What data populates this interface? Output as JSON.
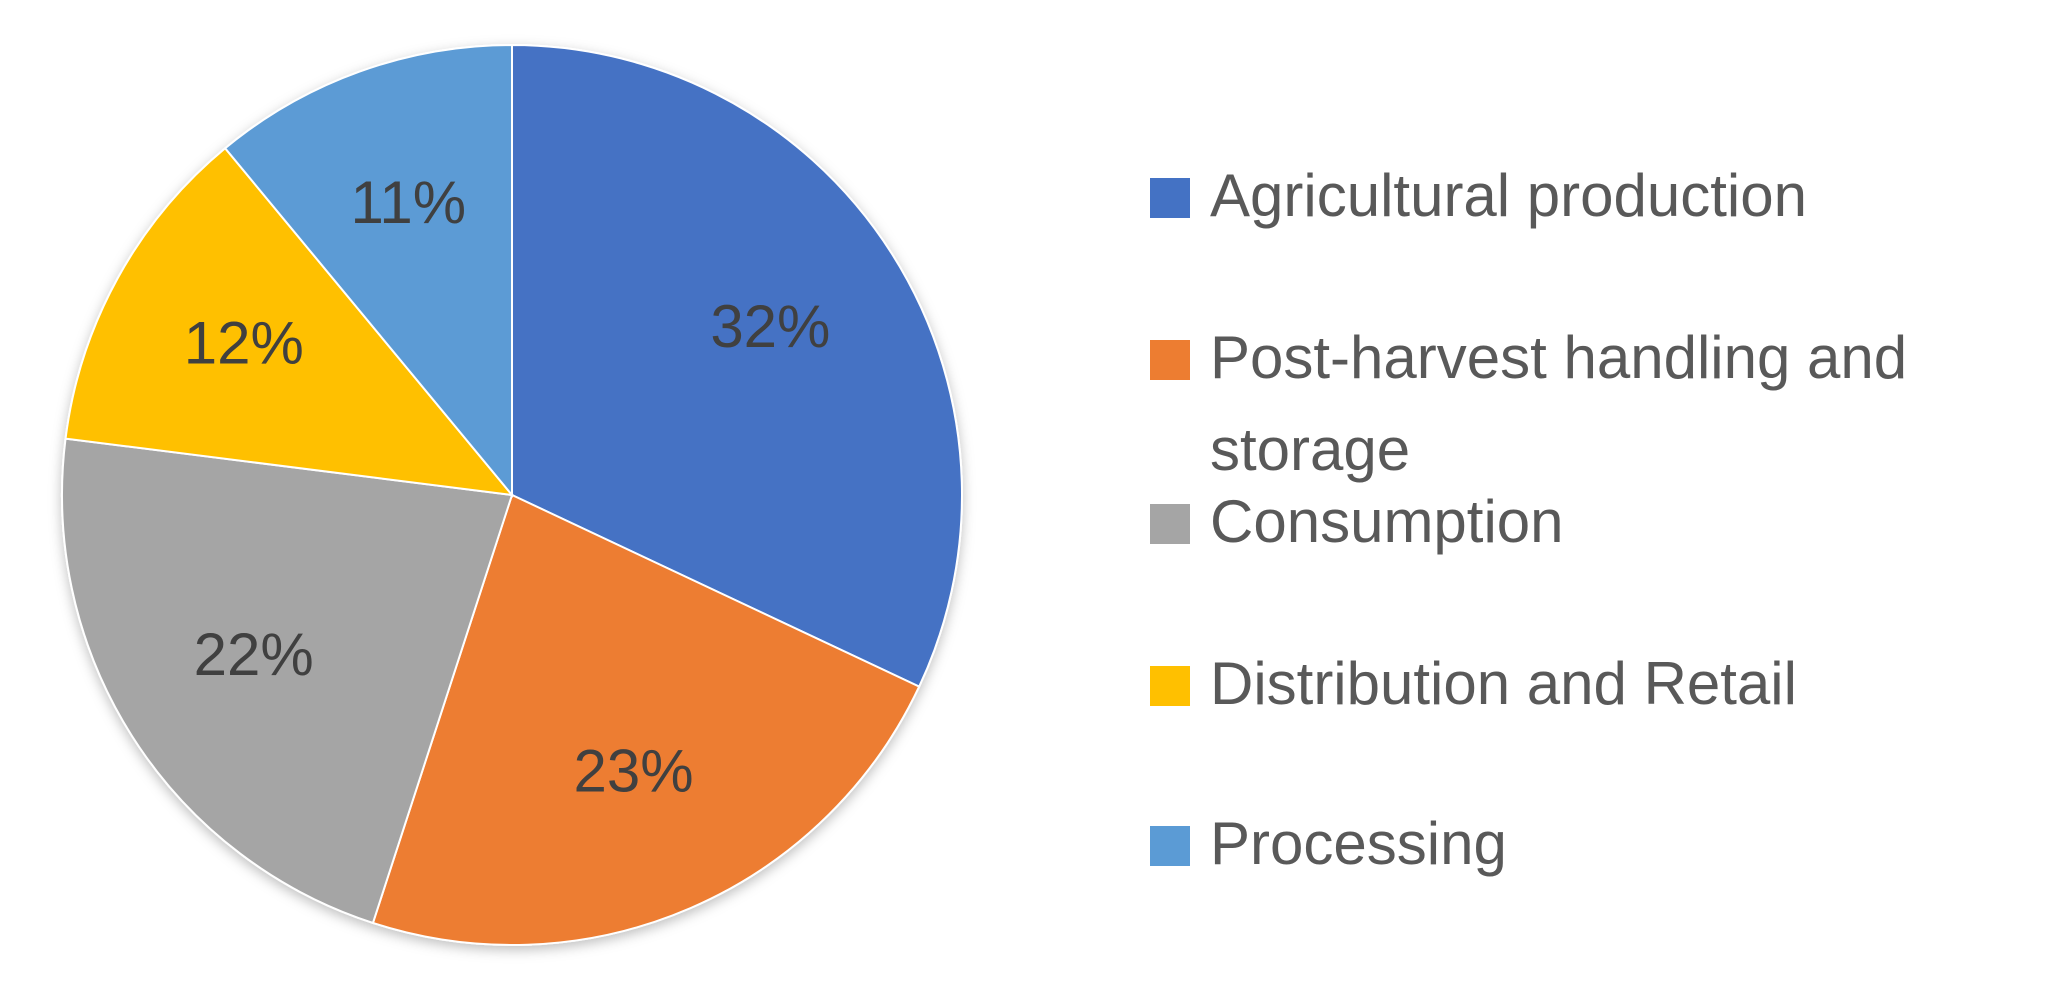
{
  "chart_data": {
    "type": "pie",
    "categories": [
      "Agricultural production",
      "Post-harvest handling and storage",
      "Consumption",
      "Distribution and Retail",
      "Processing"
    ],
    "values": [
      32,
      23,
      22,
      12,
      11
    ],
    "data_labels": [
      "32%",
      "23%",
      "22%",
      "12%",
      "11%"
    ],
    "colors": [
      "#4472C4",
      "#ED7D31",
      "#A5A5A5",
      "#FFC000",
      "#5B9BD5"
    ],
    "start_angle_deg": 0,
    "direction": "clockwise",
    "legend_position": "right"
  }
}
